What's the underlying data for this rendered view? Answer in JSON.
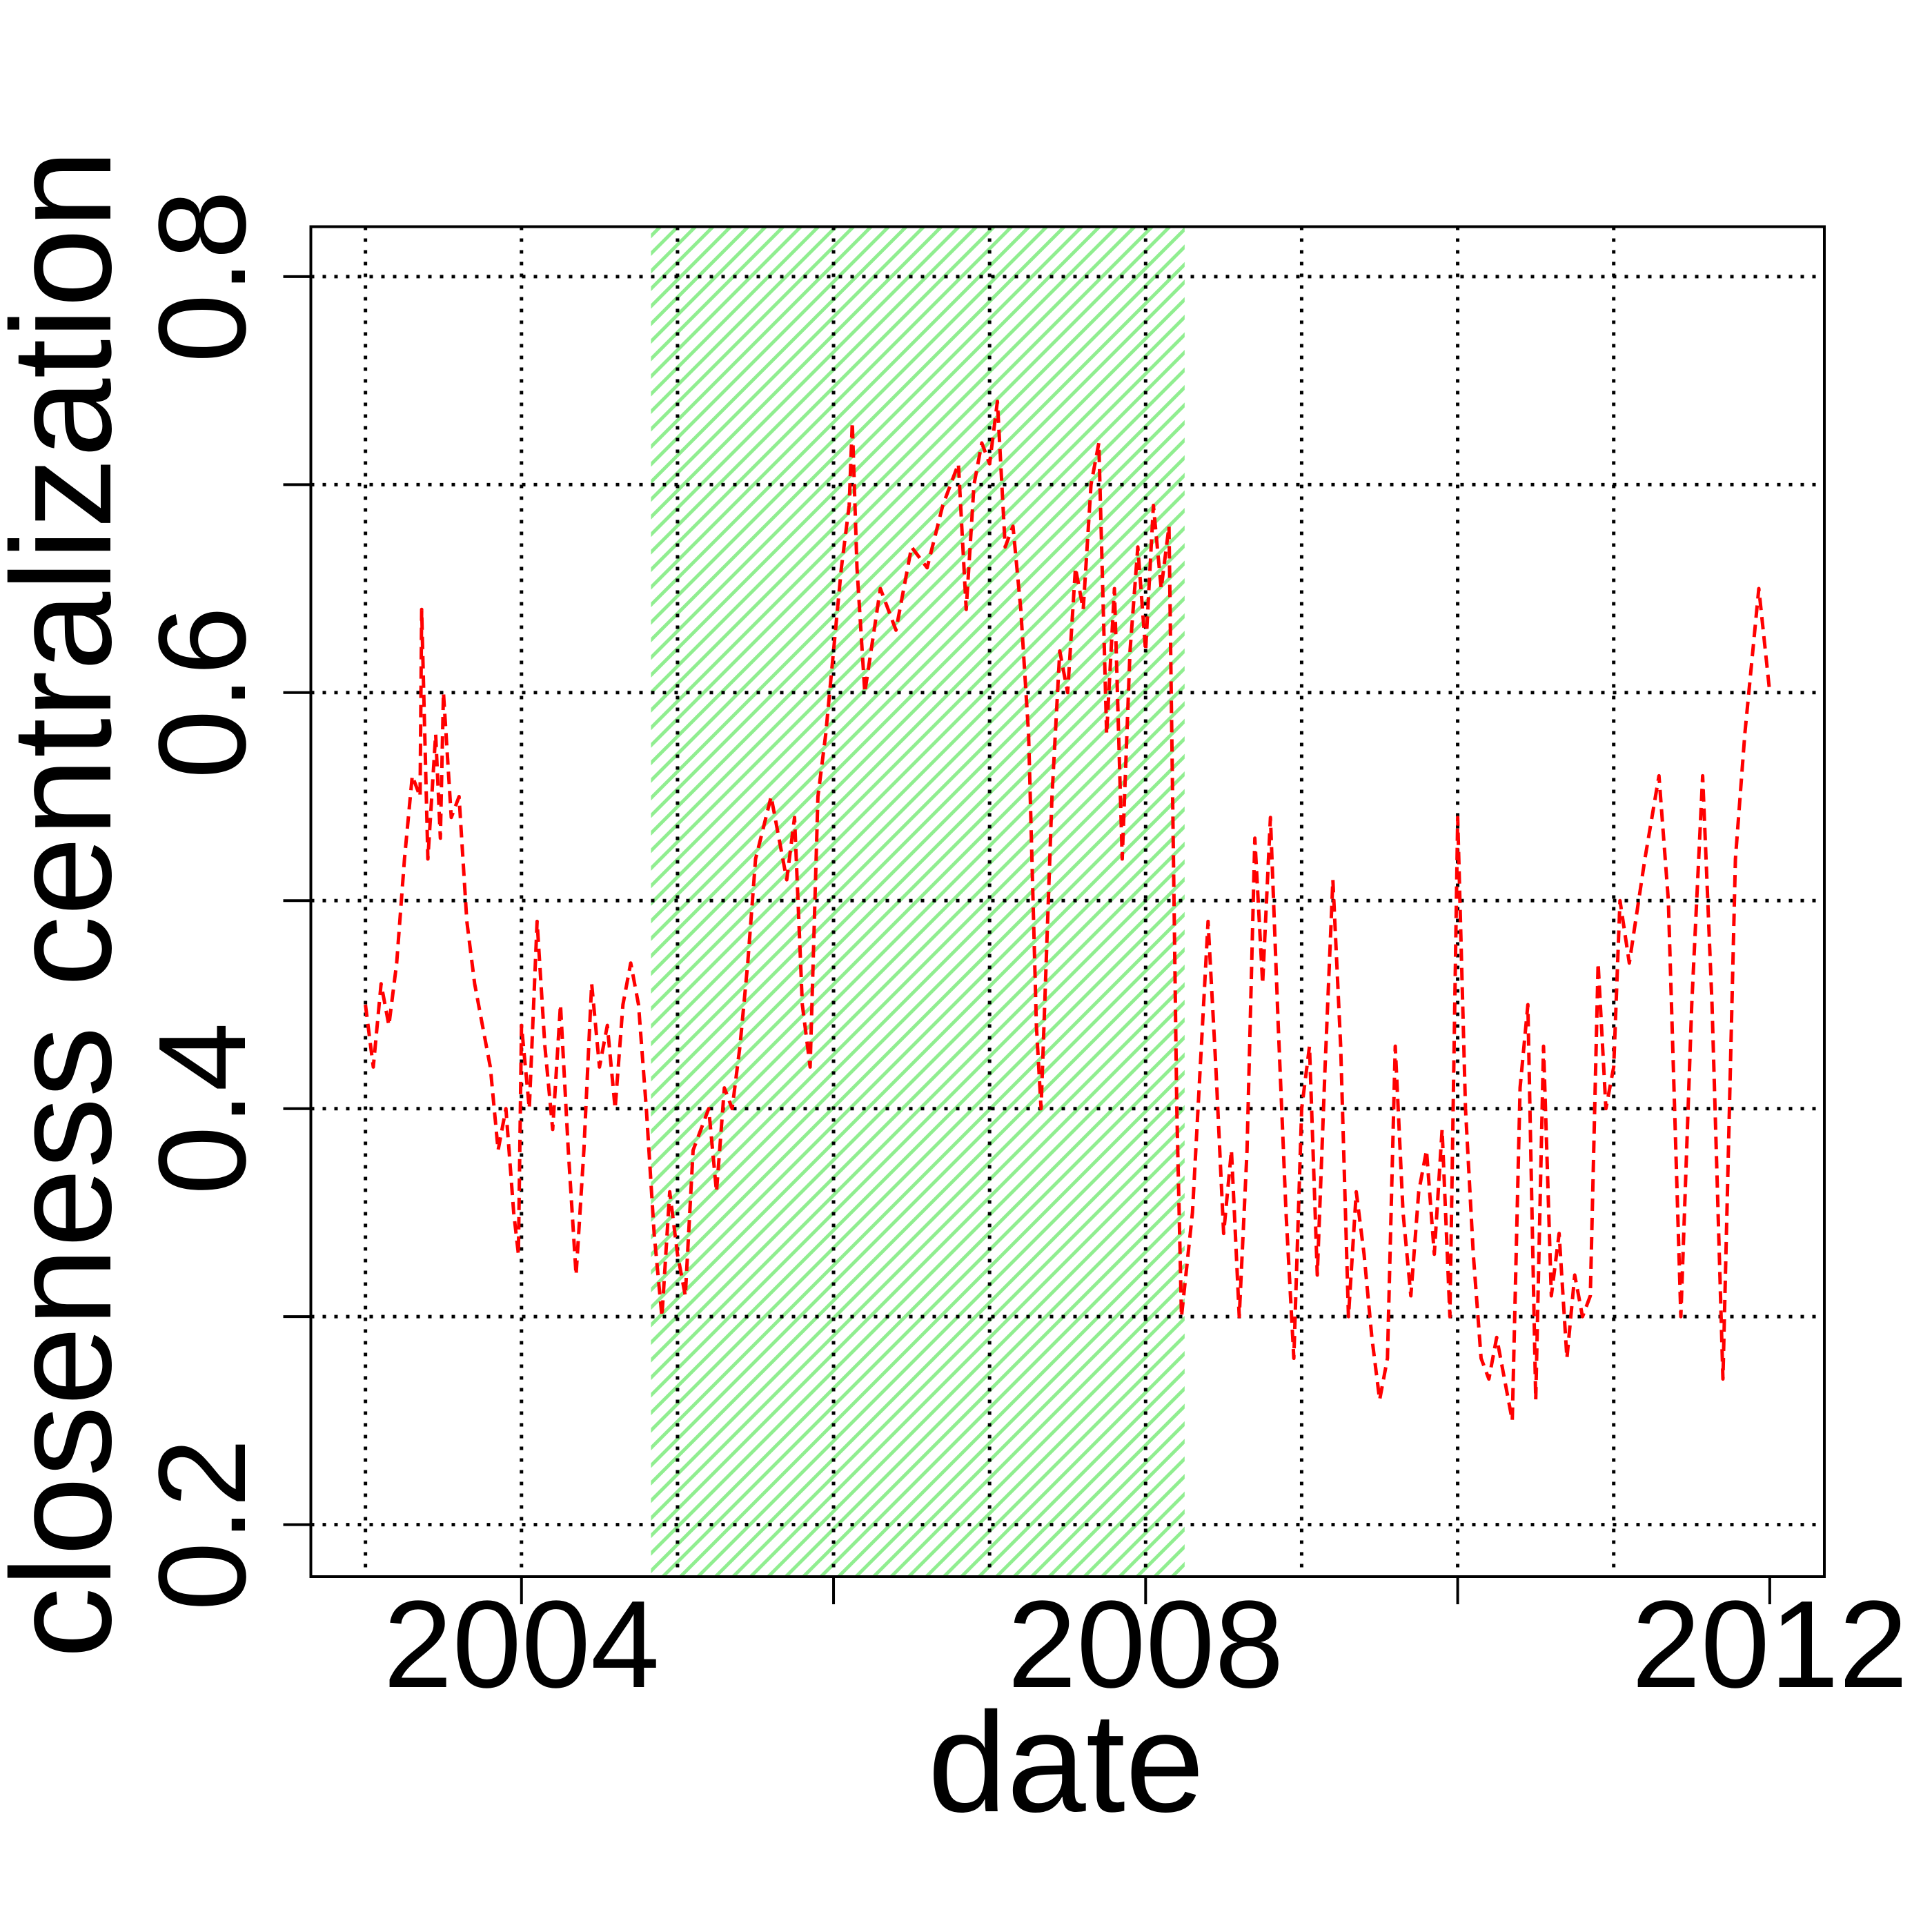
{
  "chart_data": {
    "type": "line",
    "xlabel": "date",
    "ylabel": "closeness centralization",
    "xlim": [
      2002.65,
      2012.35
    ],
    "ylim": [
      0.175,
      0.824
    ],
    "xticks": [
      2004,
      2008,
      2012
    ],
    "x_minor_ticks": [
      2006,
      2010
    ],
    "x_grid": [
      2003,
      2004,
      2005,
      2006,
      2007,
      2008,
      2009,
      2010,
      2011
    ],
    "yticks": [
      0.2,
      0.4,
      0.6,
      0.8
    ],
    "y_minor_ticks": [
      0.3,
      0.5,
      0.7
    ],
    "grid": true,
    "shaded_region": {
      "x": [
        2004.83,
        2008.25
      ],
      "color": "#90ee90"
    },
    "x": [
      2003.0,
      2003.05,
      2003.1,
      2003.15,
      2003.2,
      2003.25,
      2003.3,
      2003.35,
      2003.36,
      2003.4,
      2003.45,
      2003.48,
      2003.5,
      2003.55,
      2003.6,
      2003.65,
      2003.7,
      2003.75,
      2003.8,
      2003.85,
      2003.9,
      2003.95,
      2003.98,
      2004.0,
      2004.05,
      2004.1,
      2004.15,
      2004.2,
      2004.25,
      2004.3,
      2004.35,
      2004.4,
      2004.45,
      2004.5,
      2004.55,
      2004.6,
      2004.65,
      2004.7,
      2004.75,
      2004.8,
      2004.85,
      2004.9,
      2004.95,
      2005.0,
      2005.05,
      2005.1,
      2005.2,
      2005.25,
      2005.3,
      2005.35,
      2005.4,
      2005.45,
      2005.5,
      2005.6,
      2005.65,
      2005.7,
      2005.75,
      2005.8,
      2005.85,
      2005.9,
      2005.95,
      2006.0,
      2006.05,
      2006.1,
      2006.12,
      2006.15,
      2006.2,
      2006.3,
      2006.4,
      2006.5,
      2006.6,
      2006.7,
      2006.8,
      2006.85,
      2006.9,
      2006.95,
      2007.0,
      2007.05,
      2007.1,
      2007.15,
      2007.2,
      2007.25,
      2007.3,
      2007.33,
      2007.4,
      2007.45,
      2007.5,
      2007.55,
      2007.6,
      2007.65,
      2007.7,
      2007.75,
      2007.8,
      2007.85,
      2007.9,
      2007.95,
      2008.0,
      2008.05,
      2008.1,
      2008.15,
      2008.2,
      2008.23,
      2008.3,
      2008.4,
      2008.45,
      2008.5,
      2008.55,
      2008.6,
      2008.65,
      2008.7,
      2008.75,
      2008.8,
      2008.85,
      2008.9,
      2008.95,
      2009.0,
      2009.05,
      2009.1,
      2009.15,
      2009.2,
      2009.25,
      2009.3,
      2009.35,
      2009.4,
      2009.45,
      2009.5,
      2009.55,
      2009.6,
      2009.65,
      2009.7,
      2009.75,
      2009.8,
      2009.85,
      2009.9,
      2009.95,
      2010.0,
      2010.05,
      2010.1,
      2010.15,
      2010.2,
      2010.25,
      2010.3,
      2010.35,
      2010.4,
      2010.45,
      2010.5,
      2010.55,
      2010.6,
      2010.65,
      2010.7,
      2010.75,
      2010.8,
      2010.85,
      2010.9,
      2010.95,
      2011.0,
      2011.04,
      2011.1,
      2011.2,
      2011.29,
      2011.35,
      2011.43,
      2011.5,
      2011.57,
      2011.63,
      2011.7,
      2011.78,
      2011.84,
      2011.93,
      2012.0
    ],
    "series": [
      {
        "color": "#ff0000",
        "values": [
          0.45,
          0.42,
          0.46,
          0.44,
          0.47,
          0.52,
          0.56,
          0.55,
          0.64,
          0.52,
          0.58,
          0.53,
          0.6,
          0.54,
          0.55,
          0.49,
          0.46,
          0.44,
          0.42,
          0.38,
          0.4,
          0.35,
          0.33,
          0.44,
          0.4,
          0.49,
          0.43,
          0.39,
          0.45,
          0.38,
          0.32,
          0.38,
          0.46,
          0.42,
          0.44,
          0.4,
          0.45,
          0.47,
          0.45,
          0.4,
          0.34,
          0.3,
          0.36,
          0.33,
          0.31,
          0.38,
          0.4,
          0.36,
          0.41,
          0.4,
          0.43,
          0.47,
          0.52,
          0.55,
          0.53,
          0.51,
          0.54,
          0.45,
          0.42,
          0.55,
          0.58,
          0.62,
          0.66,
          0.69,
          0.73,
          0.66,
          0.6,
          0.65,
          0.63,
          0.67,
          0.66,
          0.69,
          0.71,
          0.64,
          0.7,
          0.72,
          0.71,
          0.74,
          0.67,
          0.68,
          0.64,
          0.58,
          0.44,
          0.4,
          0.55,
          0.62,
          0.6,
          0.66,
          0.64,
          0.7,
          0.72,
          0.58,
          0.65,
          0.52,
          0.62,
          0.67,
          0.62,
          0.69,
          0.65,
          0.68,
          0.4,
          0.3,
          0.35,
          0.49,
          0.42,
          0.34,
          0.38,
          0.3,
          0.38,
          0.53,
          0.46,
          0.54,
          0.44,
          0.35,
          0.28,
          0.4,
          0.43,
          0.32,
          0.42,
          0.51,
          0.43,
          0.3,
          0.36,
          0.33,
          0.29,
          0.26,
          0.28,
          0.43,
          0.35,
          0.31,
          0.36,
          0.38,
          0.33,
          0.39,
          0.3,
          0.54,
          0.4,
          0.33,
          0.28,
          0.27,
          0.29,
          0.27,
          0.25,
          0.41,
          0.45,
          0.26,
          0.43,
          0.31,
          0.34,
          0.28,
          0.32,
          0.3,
          0.31,
          0.47,
          0.4,
          0.42,
          0.5,
          0.47,
          0.52,
          0.56,
          0.5,
          0.3,
          0.45,
          0.56,
          0.45,
          0.27,
          0.52,
          0.58,
          0.65,
          0.6
        ]
      }
    ]
  }
}
